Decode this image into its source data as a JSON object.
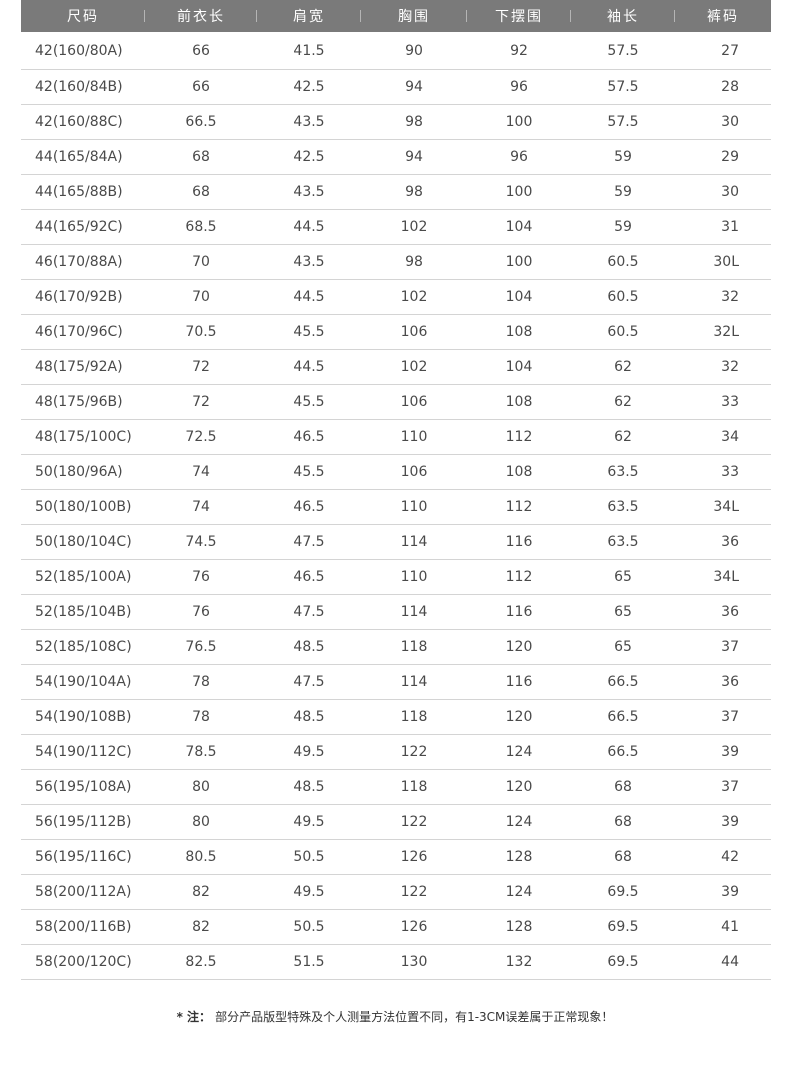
{
  "table": {
    "headers": [
      "尺码",
      "前衣长",
      "肩宽",
      "胸围",
      "下摆围",
      "袖长",
      "裤码"
    ],
    "rows": [
      [
        "42(160/80A)",
        "66",
        "41.5",
        "90",
        "92",
        "57.5",
        "27"
      ],
      [
        "42(160/84B)",
        "66",
        "42.5",
        "94",
        "96",
        "57.5",
        "28"
      ],
      [
        "42(160/88C)",
        "66.5",
        "43.5",
        "98",
        "100",
        "57.5",
        "30"
      ],
      [
        "44(165/84A)",
        "68",
        "42.5",
        "94",
        "96",
        "59",
        "29"
      ],
      [
        "44(165/88B)",
        "68",
        "43.5",
        "98",
        "100",
        "59",
        "30"
      ],
      [
        "44(165/92C)",
        "68.5",
        "44.5",
        "102",
        "104",
        "59",
        "31"
      ],
      [
        "46(170/88A)",
        "70",
        "43.5",
        "98",
        "100",
        "60.5",
        "30L"
      ],
      [
        "46(170/92B)",
        "70",
        "44.5",
        "102",
        "104",
        "60.5",
        "32"
      ],
      [
        "46(170/96C)",
        "70.5",
        "45.5",
        "106",
        "108",
        "60.5",
        "32L"
      ],
      [
        "48(175/92A)",
        "72",
        "44.5",
        "102",
        "104",
        "62",
        "32"
      ],
      [
        "48(175/96B)",
        "72",
        "45.5",
        "106",
        "108",
        "62",
        "33"
      ],
      [
        "48(175/100C)",
        "72.5",
        "46.5",
        "110",
        "112",
        "62",
        "34"
      ],
      [
        "50(180/96A)",
        "74",
        "45.5",
        "106",
        "108",
        "63.5",
        "33"
      ],
      [
        "50(180/100B)",
        "74",
        "46.5",
        "110",
        "112",
        "63.5",
        "34L"
      ],
      [
        "50(180/104C)",
        "74.5",
        "47.5",
        "114",
        "116",
        "63.5",
        "36"
      ],
      [
        "52(185/100A)",
        "76",
        "46.5",
        "110",
        "112",
        "65",
        "34L"
      ],
      [
        "52(185/104B)",
        "76",
        "47.5",
        "114",
        "116",
        "65",
        "36"
      ],
      [
        "52(185/108C)",
        "76.5",
        "48.5",
        "118",
        "120",
        "65",
        "37"
      ],
      [
        "54(190/104A)",
        "78",
        "47.5",
        "114",
        "116",
        "66.5",
        "36"
      ],
      [
        "54(190/108B)",
        "78",
        "48.5",
        "118",
        "120",
        "66.5",
        "37"
      ],
      [
        "54(190/112C)",
        "78.5",
        "49.5",
        "122",
        "124",
        "66.5",
        "39"
      ],
      [
        "56(195/108A)",
        "80",
        "48.5",
        "118",
        "120",
        "68",
        "37"
      ],
      [
        "56(195/112B)",
        "80",
        "49.5",
        "122",
        "124",
        "68",
        "39"
      ],
      [
        "56(195/116C)",
        "80.5",
        "50.5",
        "126",
        "128",
        "68",
        "42"
      ],
      [
        "58(200/112A)",
        "82",
        "49.5",
        "122",
        "124",
        "69.5",
        "39"
      ],
      [
        "58(200/116B)",
        "82",
        "50.5",
        "126",
        "128",
        "69.5",
        "41"
      ],
      [
        "58(200/120C)",
        "82.5",
        "51.5",
        "130",
        "132",
        "69.5",
        "44"
      ]
    ]
  },
  "footnote": {
    "mark": "* 注：",
    "text": "部分产品版型特殊及个人测量方法位置不同，有1-3CM误差属于正常现象！"
  },
  "colors": {
    "header_bg": "#7a7a7a",
    "header_text": "#ffffff",
    "row_divider": "#d4d4d4",
    "body_text": "#4a4a4a"
  }
}
